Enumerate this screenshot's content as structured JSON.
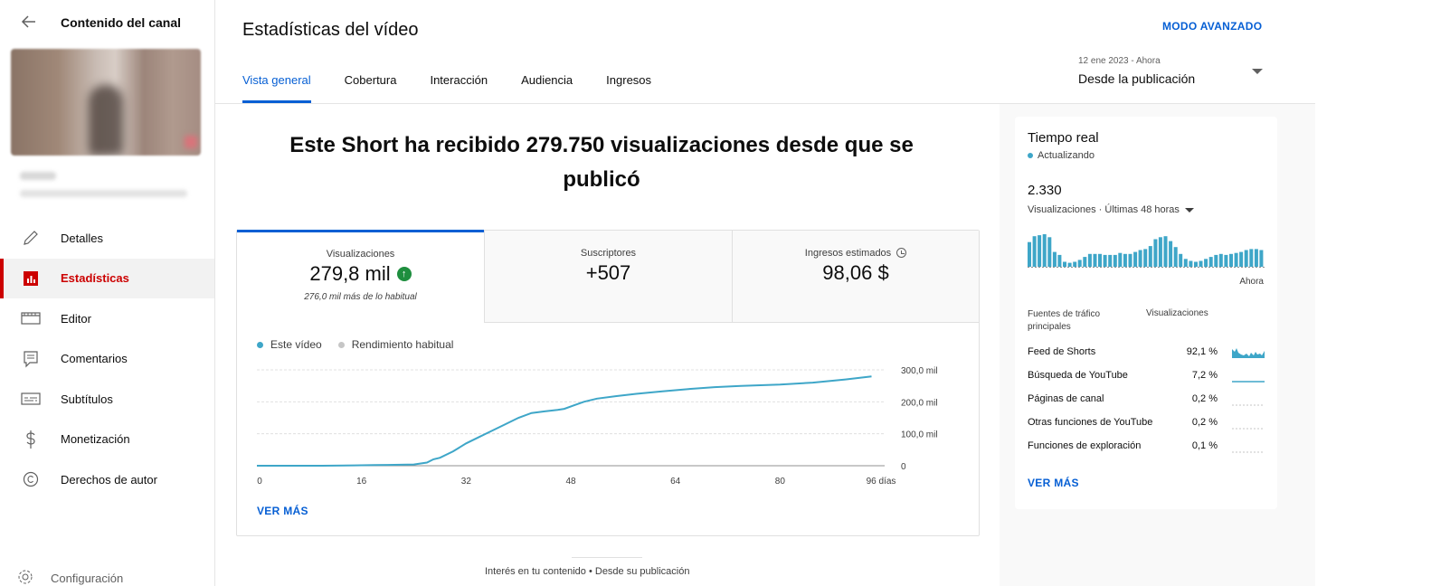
{
  "sidebar": {
    "title": "Contenido del canal",
    "items": [
      {
        "label": "Detalles",
        "icon": "pencil-icon"
      },
      {
        "label": "Estadísticas",
        "icon": "analytics-icon"
      },
      {
        "label": "Editor",
        "icon": "film-icon"
      },
      {
        "label": "Comentarios",
        "icon": "comment-icon"
      },
      {
        "label": "Subtítulos",
        "icon": "subtitles-icon"
      },
      {
        "label": "Monetización",
        "icon": "dollar-icon"
      },
      {
        "label": "Derechos de autor",
        "icon": "copyright-icon"
      }
    ],
    "bottom_label": "Configuración"
  },
  "header": {
    "title": "Estadísticas del vídeo",
    "advanced_mode": "MODO AVANZADO",
    "tabs": [
      "Vista general",
      "Cobertura",
      "Interacción",
      "Audiencia",
      "Ingresos"
    ],
    "date_range_sub": "12 ene 2023 - Ahora",
    "date_range_main": "Desde la publicación"
  },
  "headline": "Este Short ha recibido 279.750 visualizaciones desde que se publicó",
  "metrics": [
    {
      "label": "Visualizaciones",
      "value": "279,8 mil",
      "note": "276,0 mil más de lo habitual"
    },
    {
      "label": "Suscriptores",
      "value": "+507"
    },
    {
      "label": "Ingresos estimados",
      "value": "98,06 $"
    }
  ],
  "legend": {
    "this_video": "Este vídeo",
    "typical": "Rendimiento habitual"
  },
  "chart_data": {
    "type": "line",
    "x": [
      0,
      5,
      10,
      15,
      18,
      20,
      22,
      24,
      26,
      27,
      28,
      30,
      32,
      34,
      36,
      38,
      40,
      42,
      44,
      46,
      47,
      50,
      52,
      55,
      58,
      62,
      66,
      70,
      74,
      80,
      85,
      90,
      94
    ],
    "series": [
      {
        "values": [
          0,
          0,
          0,
          1000,
          2000,
          2500,
          3000,
          4000,
          10000,
          20000,
          25000,
          45000,
          70000,
          90000,
          110000,
          130000,
          150000,
          165000,
          170000,
          175000,
          178000,
          200000,
          210000,
          218000,
          225000,
          233000,
          240000,
          246000,
          250000,
          254000,
          260000,
          270000,
          279750
        ]
      }
    ],
    "x_ticks": [
      "0",
      "16",
      "32",
      "48",
      "64",
      "80",
      "96 días"
    ],
    "y_ticks": [
      "0",
      "100,0 mil",
      "200,0 mil",
      "300,0 mil"
    ],
    "xlim": [
      0,
      96
    ],
    "ylim": [
      0,
      300000
    ],
    "colors": {
      "this_video": "#3ea6c8",
      "typical": "#c6c6c6"
    }
  },
  "ver_mas": "VER MÁS",
  "bottom_caption": "Interés en tu contenido • Desde su publicación",
  "realtime": {
    "title": "Tiempo real",
    "status": "Actualizando",
    "value": "2.330",
    "subtitle": "Visualizaciones · Últimas 48 horas",
    "now_label": "Ahora",
    "bars": [
      25,
      31,
      32,
      33,
      30,
      15,
      12,
      5,
      4,
      5,
      7,
      10,
      13,
      13,
      13,
      12,
      12,
      12,
      14,
      13,
      13,
      15,
      17,
      18,
      21,
      28,
      30,
      31,
      26,
      20,
      13,
      8,
      6,
      5,
      6,
      8,
      10,
      12,
      13,
      12,
      13,
      14,
      15,
      17,
      18,
      18,
      17
    ],
    "sources_header": "Fuentes de tráfico principales",
    "views_header": "Visualizaciones",
    "sources": [
      {
        "name": "Feed de Shorts",
        "pct": "92,1 %"
      },
      {
        "name": "Búsqueda de YouTube",
        "pct": "7,2 %"
      },
      {
        "name": "Páginas de canal",
        "pct": "0,2 %"
      },
      {
        "name": "Otras funciones de YouTube",
        "pct": "0,2 %"
      },
      {
        "name": "Funciones de exploración",
        "pct": "0,1 %"
      }
    ],
    "ver_mas": "VER MÁS"
  }
}
